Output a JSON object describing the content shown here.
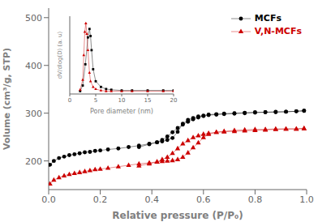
{
  "chart_data": [
    {
      "type": "line",
      "xlabel": "Relative pressure (P/P₀)",
      "ylabel": "Volume (cm³/g, STP)",
      "xlim": [
        0.0,
        1.0
      ],
      "ylim": [
        140,
        520
      ],
      "xticks": [
        {
          "value": 0,
          "label": "0.0"
        },
        0.2,
        0.4,
        0.6,
        0.8,
        {
          "value": 1,
          "label": "1.0"
        }
      ],
      "yticks": [
        200,
        300,
        400,
        500
      ],
      "grid": false,
      "legend": "upper right",
      "series": [
        {
          "name": "MCFs",
          "color": "#000000",
          "marker": "circle",
          "x": [
            0.005,
            0.02,
            0.04,
            0.06,
            0.08,
            0.1,
            0.12,
            0.14,
            0.16,
            0.18,
            0.2,
            0.23,
            0.27,
            0.31,
            0.35,
            0.39,
            0.42,
            0.44,
            0.46,
            0.48,
            0.5,
            0.52,
            0.54,
            0.56,
            0.58,
            0.6,
            0.62,
            0.65,
            0.68,
            0.72,
            0.76,
            0.8,
            0.84,
            0.88,
            0.92,
            0.96,
            0.99
          ],
          "values": [
            192,
            200,
            206,
            209,
            212,
            214,
            216,
            218,
            219,
            221,
            222,
            224,
            226,
            229,
            232,
            236,
            239,
            241,
            244,
            248,
            261,
            278,
            286,
            290,
            293,
            295,
            297,
            298,
            299,
            300,
            301,
            302,
            302,
            303,
            303,
            304,
            305
          ]
        },
        {
          "color": "#000000",
          "marker": "circle",
          "x": [
            0.99,
            0.96,
            0.92,
            0.88,
            0.84,
            0.8,
            0.76,
            0.72,
            0.68,
            0.65,
            0.62,
            0.6,
            0.58,
            0.56,
            0.54,
            0.52,
            0.5,
            0.48,
            0.46,
            0.44,
            0.42,
            0.39,
            0.35
          ],
          "values": [
            305,
            304,
            303,
            302,
            302,
            301,
            300,
            299,
            298,
            297,
            296,
            294,
            291,
            287,
            282,
            276,
            269,
            260,
            251,
            244,
            239,
            235,
            229
          ]
        },
        {
          "name": "V,N-MCFs",
          "color": "#cc0000",
          "marker": "triangle",
          "x": [
            0.005,
            0.02,
            0.04,
            0.06,
            0.08,
            0.1,
            0.12,
            0.14,
            0.16,
            0.18,
            0.2,
            0.23,
            0.27,
            0.31,
            0.35,
            0.39,
            0.42,
            0.44,
            0.46,
            0.48,
            0.5,
            0.52,
            0.54,
            0.56,
            0.58,
            0.6,
            0.62,
            0.65,
            0.68,
            0.72,
            0.76,
            0.8,
            0.84,
            0.88,
            0.92,
            0.96,
            0.99
          ],
          "values": [
            152,
            160,
            165,
            169,
            172,
            174,
            176,
            178,
            180,
            182,
            183,
            185,
            188,
            191,
            194,
            196,
            198,
            199,
            200,
            201,
            203,
            208,
            217,
            228,
            238,
            249,
            256,
            260,
            262,
            264,
            265,
            266,
            266,
            267,
            267,
            267,
            268
          ]
        },
        {
          "color": "#cc0000",
          "marker": "triangle",
          "x": [
            0.99,
            0.96,
            0.92,
            0.88,
            0.84,
            0.8,
            0.76,
            0.72,
            0.68,
            0.65,
            0.62,
            0.6,
            0.58,
            0.56,
            0.54,
            0.52,
            0.5,
            0.48,
            0.46,
            0.44,
            0.42,
            0.39,
            0.35
          ],
          "values": [
            268,
            267,
            267,
            266,
            265,
            264,
            263,
            262,
            261,
            260,
            258,
            256,
            253,
            249,
            243,
            236,
            226,
            216,
            208,
            203,
            198,
            194,
            190
          ]
        }
      ]
    },
    {
      "type": "line",
      "xlabel": "Pore diameter (nm)",
      "ylabel": "dV/dlog(D) (a. u)",
      "xlim": [
        0,
        20
      ],
      "ylim": [
        0,
        1.1
      ],
      "xticks": [
        0,
        5,
        10,
        15,
        20
      ],
      "tick_labels": "x",
      "series": [
        {
          "color": "#000000",
          "marker": "square",
          "x": [
            2.0,
            2.5,
            3.0,
            3.5,
            3.8,
            4.0,
            4.2,
            4.5,
            5.0,
            6.0,
            7.0,
            8.0,
            10.0,
            12.0,
            15.0,
            18.0,
            20.0
          ],
          "values": [
            0.04,
            0.12,
            0.42,
            0.8,
            0.92,
            0.82,
            0.62,
            0.35,
            0.18,
            0.1,
            0.07,
            0.06,
            0.05,
            0.05,
            0.05,
            0.05,
            0.05
          ]
        },
        {
          "color": "#cc0000",
          "marker": "triangle",
          "x": [
            2.0,
            2.5,
            2.7,
            2.9,
            3.1,
            3.3,
            3.5,
            3.8,
            4.0,
            4.5,
            5.0,
            6.0,
            7.0,
            8.0,
            10.0,
            12.0,
            15.0,
            18.0,
            20.0
          ],
          "values": [
            0.06,
            0.2,
            0.55,
            0.88,
            1.0,
            0.85,
            0.62,
            0.3,
            0.18,
            0.1,
            0.07,
            0.05,
            0.04,
            0.04,
            0.04,
            0.04,
            0.04,
            0.04,
            0.04
          ]
        }
      ]
    }
  ]
}
